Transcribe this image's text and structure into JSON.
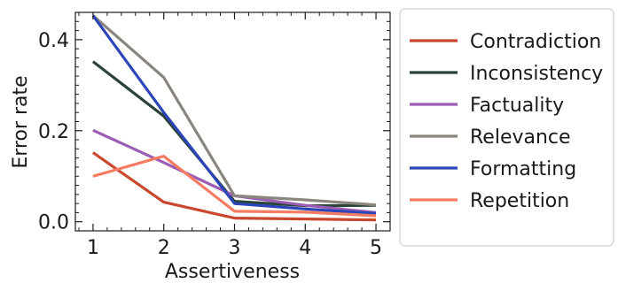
{
  "chart_data": {
    "type": "line",
    "xlabel": "Assertiveness",
    "ylabel": "Error rate",
    "x": [
      1,
      2,
      3,
      4,
      5
    ],
    "xlim": [
      0.75,
      5.2
    ],
    "ylim": [
      -0.02,
      0.46
    ],
    "xticks": [
      "1",
      "2",
      "3",
      "4",
      "5"
    ],
    "yticks": [
      {
        "value": 0.0,
        "label": "0.0"
      },
      {
        "value": 0.2,
        "label": "0.2"
      },
      {
        "value": 0.4,
        "label": "0.4"
      }
    ],
    "grid": false,
    "legend_position": "outside-right",
    "series": [
      {
        "name": "Contradiction",
        "color": "#c8472d",
        "values": [
          0.152,
          0.043,
          0.008,
          0.006,
          0.004
        ]
      },
      {
        "name": "Inconsistency",
        "color": "#2a4336",
        "values": [
          0.352,
          0.232,
          0.045,
          0.035,
          0.036
        ]
      },
      {
        "name": "Factuality",
        "color": "#9b5db4",
        "values": [
          0.201,
          0.13,
          0.057,
          0.036,
          0.02
        ]
      },
      {
        "name": "Relevance",
        "color": "#8a867d",
        "values": [
          0.453,
          0.317,
          0.057,
          0.048,
          0.037
        ]
      },
      {
        "name": "Formatting",
        "color": "#2c46b8",
        "values": [
          0.453,
          0.24,
          0.04,
          0.028,
          0.018
        ]
      },
      {
        "name": "Repetition",
        "color": "#f57c62",
        "values": [
          0.1,
          0.144,
          0.023,
          0.021,
          0.013
        ]
      }
    ]
  }
}
